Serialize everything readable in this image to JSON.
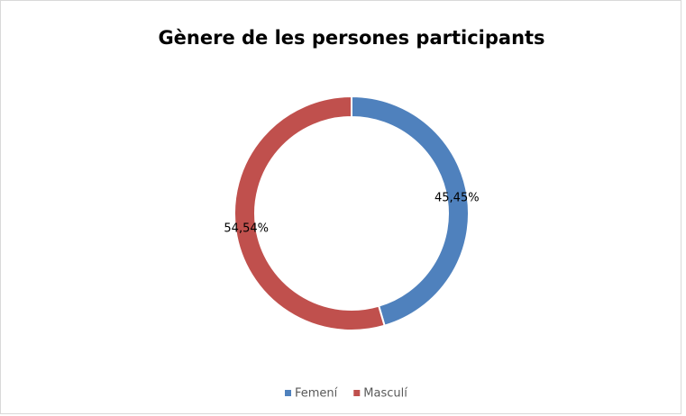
{
  "chart_data": {
    "type": "donut",
    "title": "Gènere de les persones participants",
    "categories": [
      "Femení",
      "Masculí"
    ],
    "values": [
      45.45,
      54.54
    ],
    "value_labels": [
      "45,45%",
      "54,54%"
    ],
    "colors": [
      "#4f81bd",
      "#c0504d"
    ],
    "legend": "bottom"
  }
}
